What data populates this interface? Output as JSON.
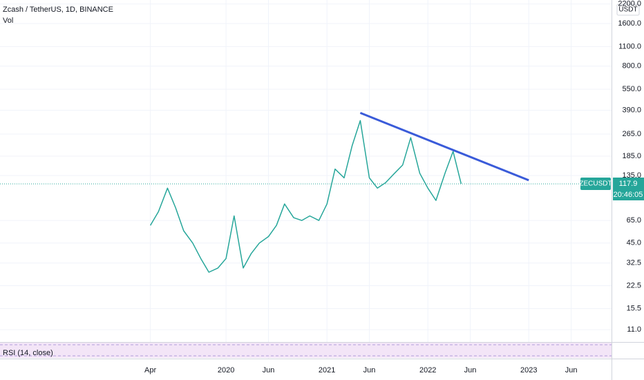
{
  "chart_data": {
    "type": "line",
    "title": "Zcash / TetherUS, 1D, BINANCE",
    "volume_label": "Vol",
    "currency": "USDT",
    "symbol": "ZECUSDT",
    "last_price": 117.9,
    "countdown": "20:46:05",
    "rsi_label": "RSI (14, close)",
    "log_scale": true,
    "grid": true,
    "xlim": [
      2017.76,
      2023.82
    ],
    "xticks": [
      {
        "value": 2019.25,
        "label": "Apr"
      },
      2020,
      {
        "value": 2020.42,
        "label": "Jun"
      },
      2021,
      {
        "value": 2021.42,
        "label": "Jun"
      },
      2022,
      {
        "value": 2022.42,
        "label": "Jun"
      },
      2023,
      {
        "value": 2023.42,
        "label": "Jun"
      }
    ],
    "ylim": [
      9,
      2347
    ],
    "yticks": [
      {
        "value": 2200,
        "label": "2200.0"
      },
      {
        "value": 1600,
        "label": "1600.0"
      },
      {
        "value": 1100,
        "label": "1100.0"
      },
      {
        "value": 800,
        "label": "800.0"
      },
      {
        "value": 550,
        "label": "550.0"
      },
      {
        "value": 390,
        "label": "390.0"
      },
      {
        "value": 265,
        "label": "265.0"
      },
      {
        "value": 185,
        "label": "185.0"
      },
      {
        "value": 135,
        "label": "135.0"
      },
      {
        "value": 65,
        "label": "65.0"
      },
      {
        "value": 45,
        "label": "45.0"
      },
      32.5,
      22.5,
      15.5,
      {
        "value": 11,
        "label": "11.0"
      }
    ],
    "series": [
      {
        "color": "#26a69a",
        "width": 1.5,
        "x": [
          2019.25,
          2019.33,
          2019.42,
          2019.5,
          2019.58,
          2019.67,
          2019.75,
          2019.83,
          2019.92,
          2020.0,
          2020.08,
          2020.17,
          2020.25,
          2020.33,
          2020.42,
          2020.5,
          2020.58,
          2020.67,
          2020.75,
          2020.83,
          2020.92,
          2021.0,
          2021.08,
          2021.17,
          2021.25,
          2021.33,
          2021.42,
          2021.5,
          2021.58,
          2021.67,
          2021.75,
          2021.83,
          2021.92,
          2022.0,
          2022.08,
          2022.17,
          2022.25,
          2022.33
        ],
        "values": [
          60,
          75,
          110,
          80,
          55,
          45,
          35,
          28,
          30,
          35,
          70,
          30,
          38,
          45,
          50,
          60,
          85,
          68,
          65,
          70,
          65,
          85,
          150,
          130,
          220,
          330,
          130,
          110,
          120,
          140,
          160,
          250,
          140,
          110,
          90,
          140,
          200,
          118
        ]
      },
      {
        "color": "#3a5bd9",
        "width": 3,
        "x": [
          2021.33,
          2023.0
        ],
        "values": [
          374,
          125
        ]
      }
    ]
  }
}
